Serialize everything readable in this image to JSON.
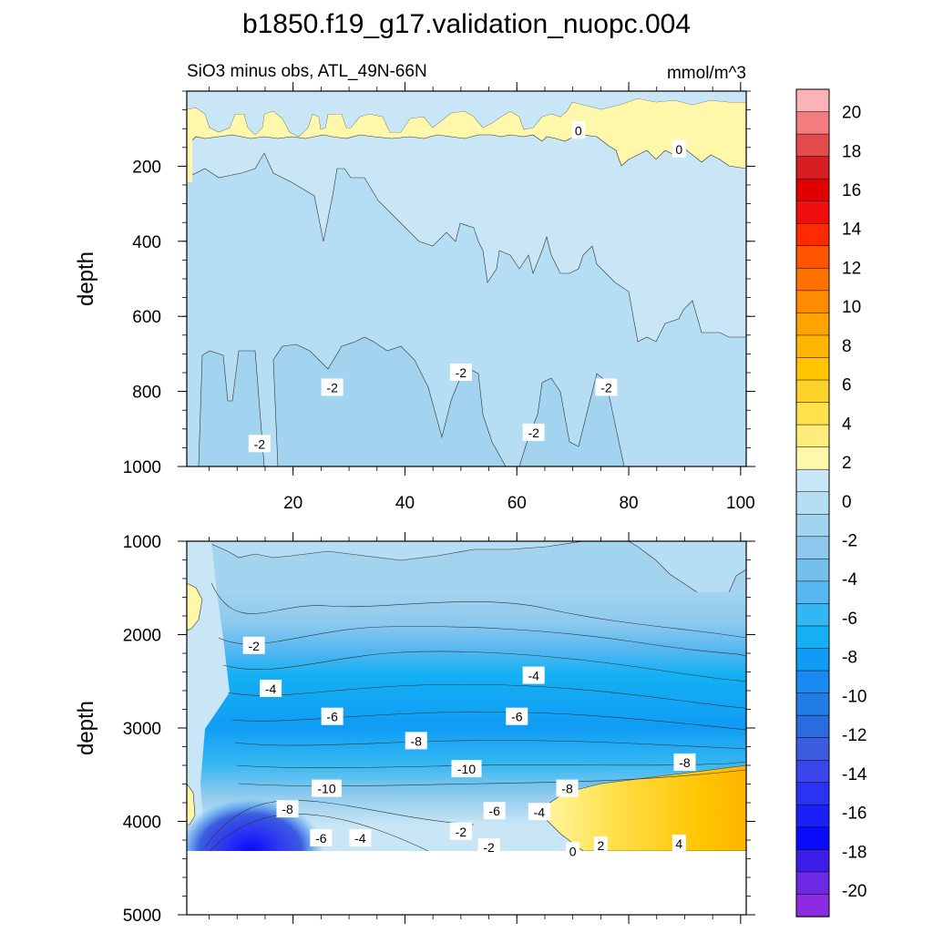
{
  "chart_data": {
    "type": "heatmap",
    "title": "b1850.f19_g17.validation_nuopc.004",
    "subtitle": "SiO3 minus obs, ATL_49N-66N",
    "units": "mmol/m^3",
    "ylabel": "depth",
    "x_ticks": [
      "20",
      "40",
      "60",
      "80",
      "100"
    ],
    "xlim": [
      1,
      101
    ],
    "panels": [
      {
        "name": "upper",
        "ylim": [
          0,
          1000
        ],
        "y_ticks": [
          "200",
          "400",
          "600",
          "800",
          "1000"
        ],
        "contour_labels": [
          {
            "text": "0",
            "x": 71,
            "y": 105
          },
          {
            "text": "0",
            "x": 89,
            "y": 155
          },
          {
            "text": "-2",
            "x": 27,
            "y": 790
          },
          {
            "text": "-2",
            "x": 50,
            "y": 750
          },
          {
            "text": "-2",
            "x": 76,
            "y": 790
          },
          {
            "text": "-2",
            "x": 63,
            "y": 910
          },
          {
            "text": "-2",
            "x": 14,
            "y": 940
          }
        ]
      },
      {
        "name": "lower",
        "ylim": [
          1000,
          5000
        ],
        "y_ticks": [
          "1000",
          "2000",
          "3000",
          "4000",
          "5000"
        ],
        "contour_labels": [
          {
            "text": "-2",
            "x": 13,
            "y": 2120
          },
          {
            "text": "-4",
            "x": 16,
            "y": 2580
          },
          {
            "text": "-6",
            "x": 27,
            "y": 2880
          },
          {
            "text": "-6",
            "x": 60,
            "y": 2880
          },
          {
            "text": "-4",
            "x": 63,
            "y": 2440
          },
          {
            "text": "-8",
            "x": 42,
            "y": 3140
          },
          {
            "text": "-10",
            "x": 51,
            "y": 3440
          },
          {
            "text": "-10",
            "x": 26,
            "y": 3650
          },
          {
            "text": "-8",
            "x": 69,
            "y": 3650
          },
          {
            "text": "-8",
            "x": 90,
            "y": 3370
          },
          {
            "text": "-8",
            "x": 19,
            "y": 3870
          },
          {
            "text": "-6",
            "x": 56,
            "y": 3890
          },
          {
            "text": "-4",
            "x": 64,
            "y": 3900
          },
          {
            "text": "-2",
            "x": 50,
            "y": 4110
          },
          {
            "text": "-2",
            "x": 55,
            "y": 4280
          },
          {
            "text": "-6",
            "x": 25,
            "y": 4180
          },
          {
            "text": "-4",
            "x": 32,
            "y": 4180
          },
          {
            "text": "0",
            "x": 70,
            "y": 4320
          },
          {
            "text": "2",
            "x": 75,
            "y": 4260
          },
          {
            "text": "4",
            "x": 89,
            "y": 4240
          }
        ]
      }
    ],
    "colorbar": {
      "labels": [
        "20",
        "18",
        "16",
        "14",
        "12",
        "10",
        "8",
        "6",
        "4",
        "2",
        "0",
        "-2",
        "-4",
        "-6",
        "-8",
        "-10",
        "-12",
        "-14",
        "-16",
        "-18",
        "-20"
      ],
      "colors": [
        "#fbb3b5",
        "#f27c7e",
        "#e54a4f",
        "#d71e22",
        "#e00000",
        "#f00d0d",
        "#ff2a00",
        "#ff5500",
        "#ff7200",
        "#ff8c00",
        "#ffa300",
        "#ffb400",
        "#ffc400",
        "#ffd22a",
        "#ffe04d",
        "#ffec7a",
        "#fff8ab",
        "#c9e6f6",
        "#b5ddf3",
        "#a2d4ef",
        "#8dc9ee",
        "#75bfed",
        "#57b7f0",
        "#33b7f2",
        "#14b0f4",
        "#109cf5",
        "#198bf0",
        "#207be4",
        "#2b6be0",
        "#3c5ce0",
        "#3a46ec",
        "#2b33f2",
        "#1b20f7",
        "#0b0bfb",
        "#3c1ee9",
        "#6d28e4",
        "#8c2be2"
      ]
    }
  }
}
